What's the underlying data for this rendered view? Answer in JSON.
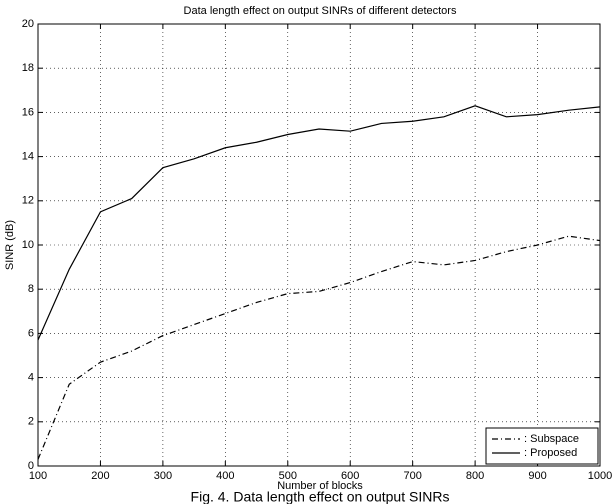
{
  "chart_data": {
    "type": "line",
    "title": "Data length effect on output SINRs of different detectors",
    "x_label": "Number of blocks",
    "y_label": "SINR (dB)",
    "caption": "Fig. 4.  Data length effect on output SINRs",
    "x": [
      100,
      150,
      200,
      250,
      300,
      350,
      400,
      450,
      500,
      550,
      600,
      650,
      700,
      750,
      800,
      850,
      900,
      950,
      1000
    ],
    "series": [
      {
        "name": ": Subspace",
        "color": "#000000",
        "dash": "dashdot",
        "values": [
          0.3,
          3.7,
          4.7,
          5.2,
          5.9,
          6.4,
          6.9,
          7.4,
          7.8,
          7.9,
          8.3,
          8.8,
          9.25,
          9.1,
          9.3,
          9.7,
          10.0,
          10.4,
          10.2
        ]
      },
      {
        "name": ": Proposed",
        "color": "#000000",
        "dash": "solid",
        "values": [
          5.7,
          8.9,
          11.5,
          12.1,
          13.5,
          13.9,
          14.4,
          14.65,
          15.0,
          15.25,
          15.15,
          15.5,
          15.6,
          15.8,
          16.3,
          15.8,
          15.9,
          16.1,
          16.25
        ]
      }
    ],
    "xlim": [
      100,
      1000
    ],
    "xticks": [
      100,
      200,
      300,
      400,
      500,
      600,
      700,
      800,
      900,
      1000
    ],
    "ylim": [
      0,
      20
    ],
    "yticks": [
      0,
      2,
      4,
      6,
      8,
      10,
      12,
      14,
      16,
      18,
      20
    ],
    "grid": true,
    "legend": "lower right"
  }
}
